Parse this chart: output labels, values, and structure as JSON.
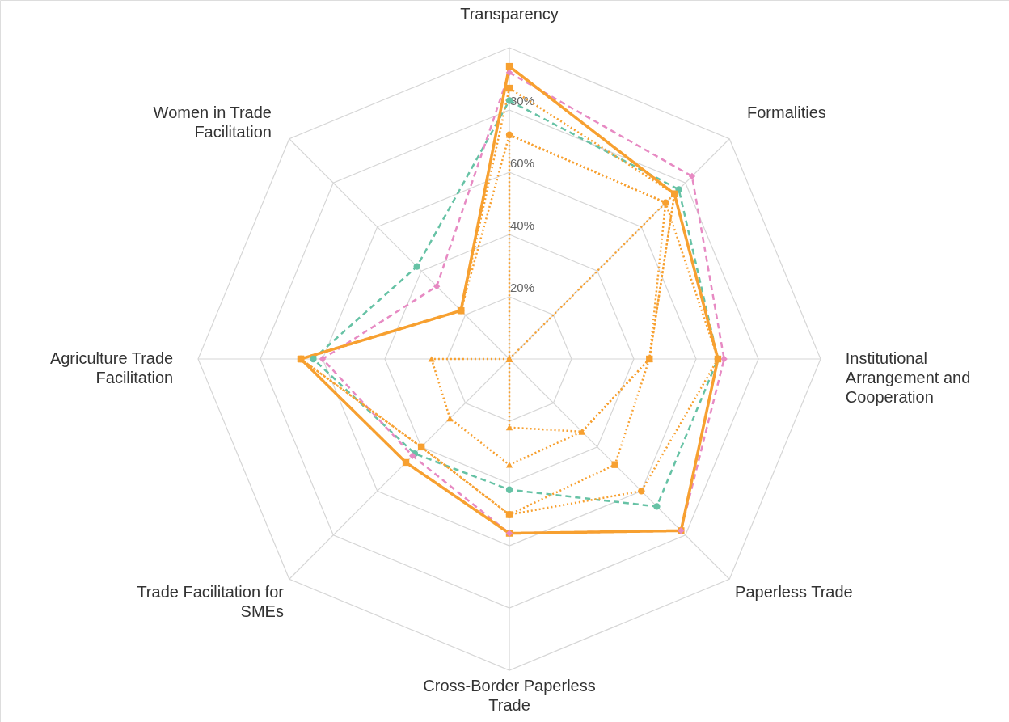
{
  "chart_data": {
    "type": "radar",
    "categories": [
      "Transparency",
      "Formalities",
      "Institutional Arrangement and Cooperation",
      "Paperless Trade",
      "Cross-Border Paperless Trade",
      "Trade Facilitation for SMEs",
      "Agriculture Trade Facilitation",
      "Women in Trade Facilitation"
    ],
    "ylim": [
      0,
      100
    ],
    "yticks": [
      {
        "value": 20,
        "label": "20%"
      },
      {
        "value": 40,
        "label": "40%"
      },
      {
        "value": 60,
        "label": "60%"
      },
      {
        "value": 80,
        "label": "80%"
      }
    ],
    "grid": true,
    "series": [
      {
        "color": "#66c2a5",
        "line_style": "dashed",
        "marker": "circle",
        "values": [
          83,
          77,
          67,
          67,
          42,
          43,
          63,
          42
        ]
      },
      {
        "color": "#e78ac3",
        "line_style": "dashed",
        "marker": "diamond",
        "values": [
          92,
          83,
          69,
          78,
          56,
          44,
          60,
          33
        ]
      },
      {
        "color": "#f7a030",
        "line_style": "dotted",
        "marker": "square",
        "values": [
          87,
          75,
          45,
          48,
          50,
          40,
          67,
          22
        ]
      },
      {
        "color": "#f7a030",
        "line_style": "dotted",
        "marker": "circle",
        "values": [
          72,
          71,
          67,
          60,
          50,
          40,
          67,
          22
        ]
      },
      {
        "color": "#f7a030",
        "line_style": "dotted",
        "marker": "triangle",
        "values": [
          0,
          75,
          45,
          33,
          34,
          27,
          25,
          0
        ]
      },
      {
        "color": "#f7a030",
        "line_style": "dotted",
        "marker": "triangle",
        "values": [
          72,
          71,
          45,
          33,
          22,
          0,
          0,
          0
        ]
      },
      {
        "color": "#f7a030",
        "line_style": "solid",
        "marker": "square",
        "values": [
          94,
          75,
          67,
          78,
          56,
          47,
          67,
          22
        ]
      }
    ]
  }
}
